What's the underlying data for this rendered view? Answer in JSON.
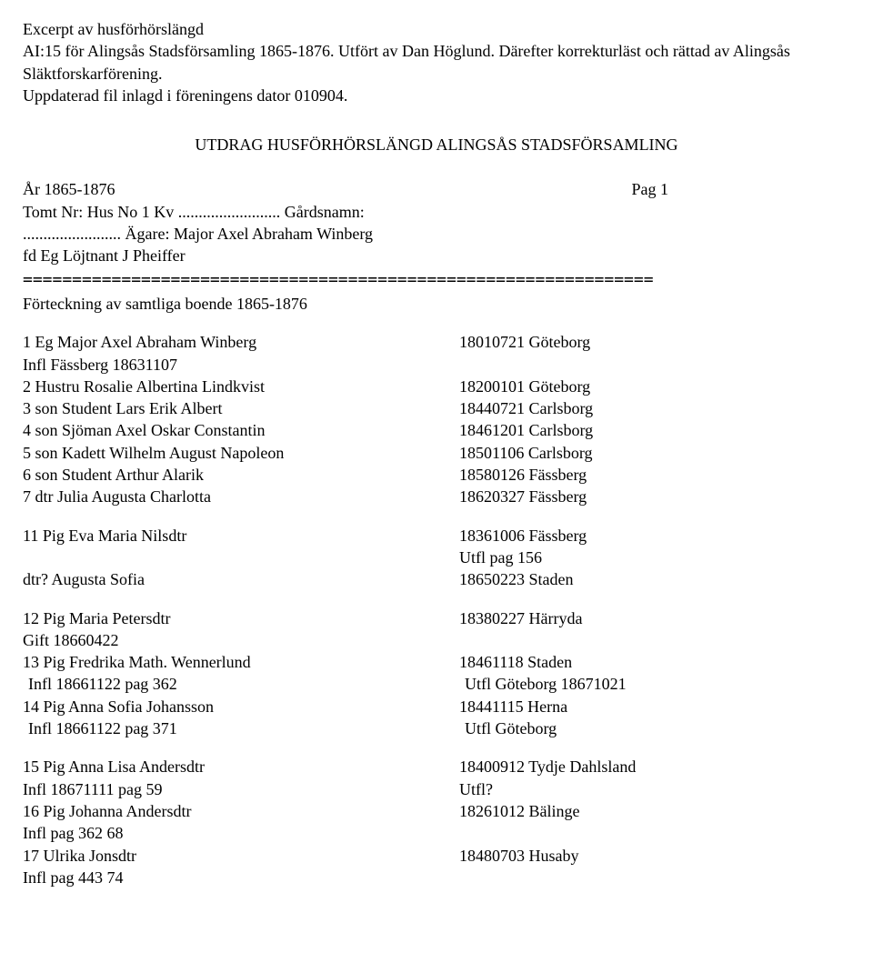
{
  "header": {
    "l1": "Excerpt av husförhörslängd",
    "l2": "AI:15 för Alingsås Stadsförsamling 1865-1876. Utfört av Dan Höglund. Därefter korrekturläst och rättad av Alingsås Släktforskarförening.",
    "l3": "Uppdaterad fil inlagd i föreningens dator 010904."
  },
  "title": "UTDRAG HUSFÖRHÖRSLÄNGD ALINGSÅS STADSFÖRSAMLING",
  "meta": {
    "year": "År 1865-1876",
    "pag": "Pag  1",
    "tomt": "Tomt   Nr: Hus No 1     Kv ......................... Gårdsnamn:",
    "owner": "........................ Ägare: Major Axel Abraham Winberg",
    "fd": "fd Eg Löjtnant J Pheiffer"
  },
  "divider": "================================================================",
  "listing_label": "Förteckning av samtliga boende 1865-1876",
  "rows": [
    {
      "c1": "1 Eg  Major Axel Abraham Winberg",
      "c2": "18010721 Göteborg"
    },
    {
      "c1": "Infl Fässberg 18631107",
      "c2": ""
    },
    {
      "c1": "2 Hustru Rosalie Albertina Lindkvist",
      "c2": "18200101 Göteborg"
    },
    {
      "c1": "3 son Student Lars Erik Albert",
      "c2": "18440721 Carlsborg"
    },
    {
      "c1": "4 son Sjöman Axel Oskar Constantin",
      "c2": "18461201 Carlsborg"
    },
    {
      "c1": "5 son Kadett Wilhelm August Napoleon",
      "c2": "18501106 Carlsborg"
    },
    {
      "c1": "6 son Student Arthur Alarik",
      "c2": "18580126 Fässberg"
    },
    {
      "c1": "7 dtr Julia Augusta Charlotta",
      "c2": "18620327 Fässberg"
    }
  ],
  "rows2": [
    {
      "c1": "11 Pig Eva Maria Nilsdtr",
      "c2": "18361006 Fässberg"
    },
    {
      "c1": "",
      "c2": "Utfl pag 156"
    },
    {
      "c1": "dtr? Augusta Sofia",
      "c2": "18650223 Staden"
    }
  ],
  "rows3": [
    {
      "c1": "12 Pig Maria Petersdtr",
      "c2": "18380227 Härryda"
    },
    {
      "c1": "Gift 18660422",
      "c2": ""
    },
    {
      "c1": "13 Pig Fredrika Math. Wennerlund",
      "c2": "18461118 Staden"
    },
    {
      "c1": " Infl 18661122 pag 362",
      "c2": "Utfl Göteborg 18671021",
      "indent": true
    },
    {
      "c1": "14 Pig Anna Sofia Johansson",
      "c2": "18441115 Herna"
    },
    {
      "c1": " Infl 18661122 pag 371",
      "c2": "Utfl Göteborg",
      "indent": true
    }
  ],
  "rows4": [
    {
      "c1": "15 Pig Anna Lisa Andersdtr",
      "c2": "18400912 Tydje  Dahlsland"
    },
    {
      "c1": "Infl 18671111 pag 59",
      "c2": "Utfl?"
    },
    {
      "c1": "16 Pig Johanna Andersdtr",
      "c2": "18261012 Bälinge"
    },
    {
      "c1": "Infl pag 362 68",
      "c2": ""
    },
    {
      "c1": "17 Ulrika Jonsdtr",
      "c2": "18480703 Husaby"
    },
    {
      "c1": "Infl pag 443 74",
      "c2": ""
    }
  ]
}
